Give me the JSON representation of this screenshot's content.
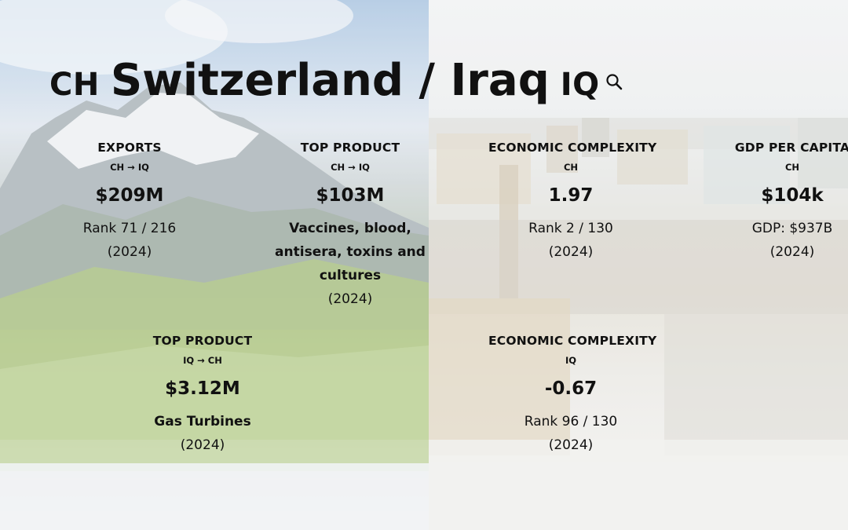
{
  "title": {
    "left_code": "CH",
    "name": "Switzerland / Iraq",
    "right_code": "IQ"
  },
  "icons": {
    "search": "search-icon"
  },
  "cards": {
    "exports": {
      "label": "EXPORTS",
      "sub": "CH → IQ",
      "value": "$209M",
      "desc": "Rank 71 / 216",
      "year": "(2024)"
    },
    "top_product_ch_iq": {
      "label": "TOP PRODUCT",
      "sub": "CH → IQ",
      "value": "$103M",
      "desc": "Vaccines, blood, antisera, toxins and cultures",
      "year": "(2024)"
    },
    "complexity_ch": {
      "label": "ECONOMIC COMPLEXITY",
      "sub": "CH",
      "value": "1.97",
      "desc": "Rank 2 / 130",
      "year": "(2024)"
    },
    "gdp_ch": {
      "label": "GDP PER CAPITA",
      "sub": "CH",
      "value": "$104k",
      "desc": "GDP: $937B",
      "year": "(2024)"
    },
    "top_product_iq_ch": {
      "label": "TOP PRODUCT",
      "sub": "IQ → CH",
      "value": "$3.12M",
      "desc": "Gas Turbines",
      "year": "(2024)"
    },
    "complexity_iq": {
      "label": "ECONOMIC COMPLEXITY",
      "sub": "IQ",
      "value": "-0.67",
      "desc": "Rank 96 / 130",
      "year": "(2024)"
    }
  }
}
